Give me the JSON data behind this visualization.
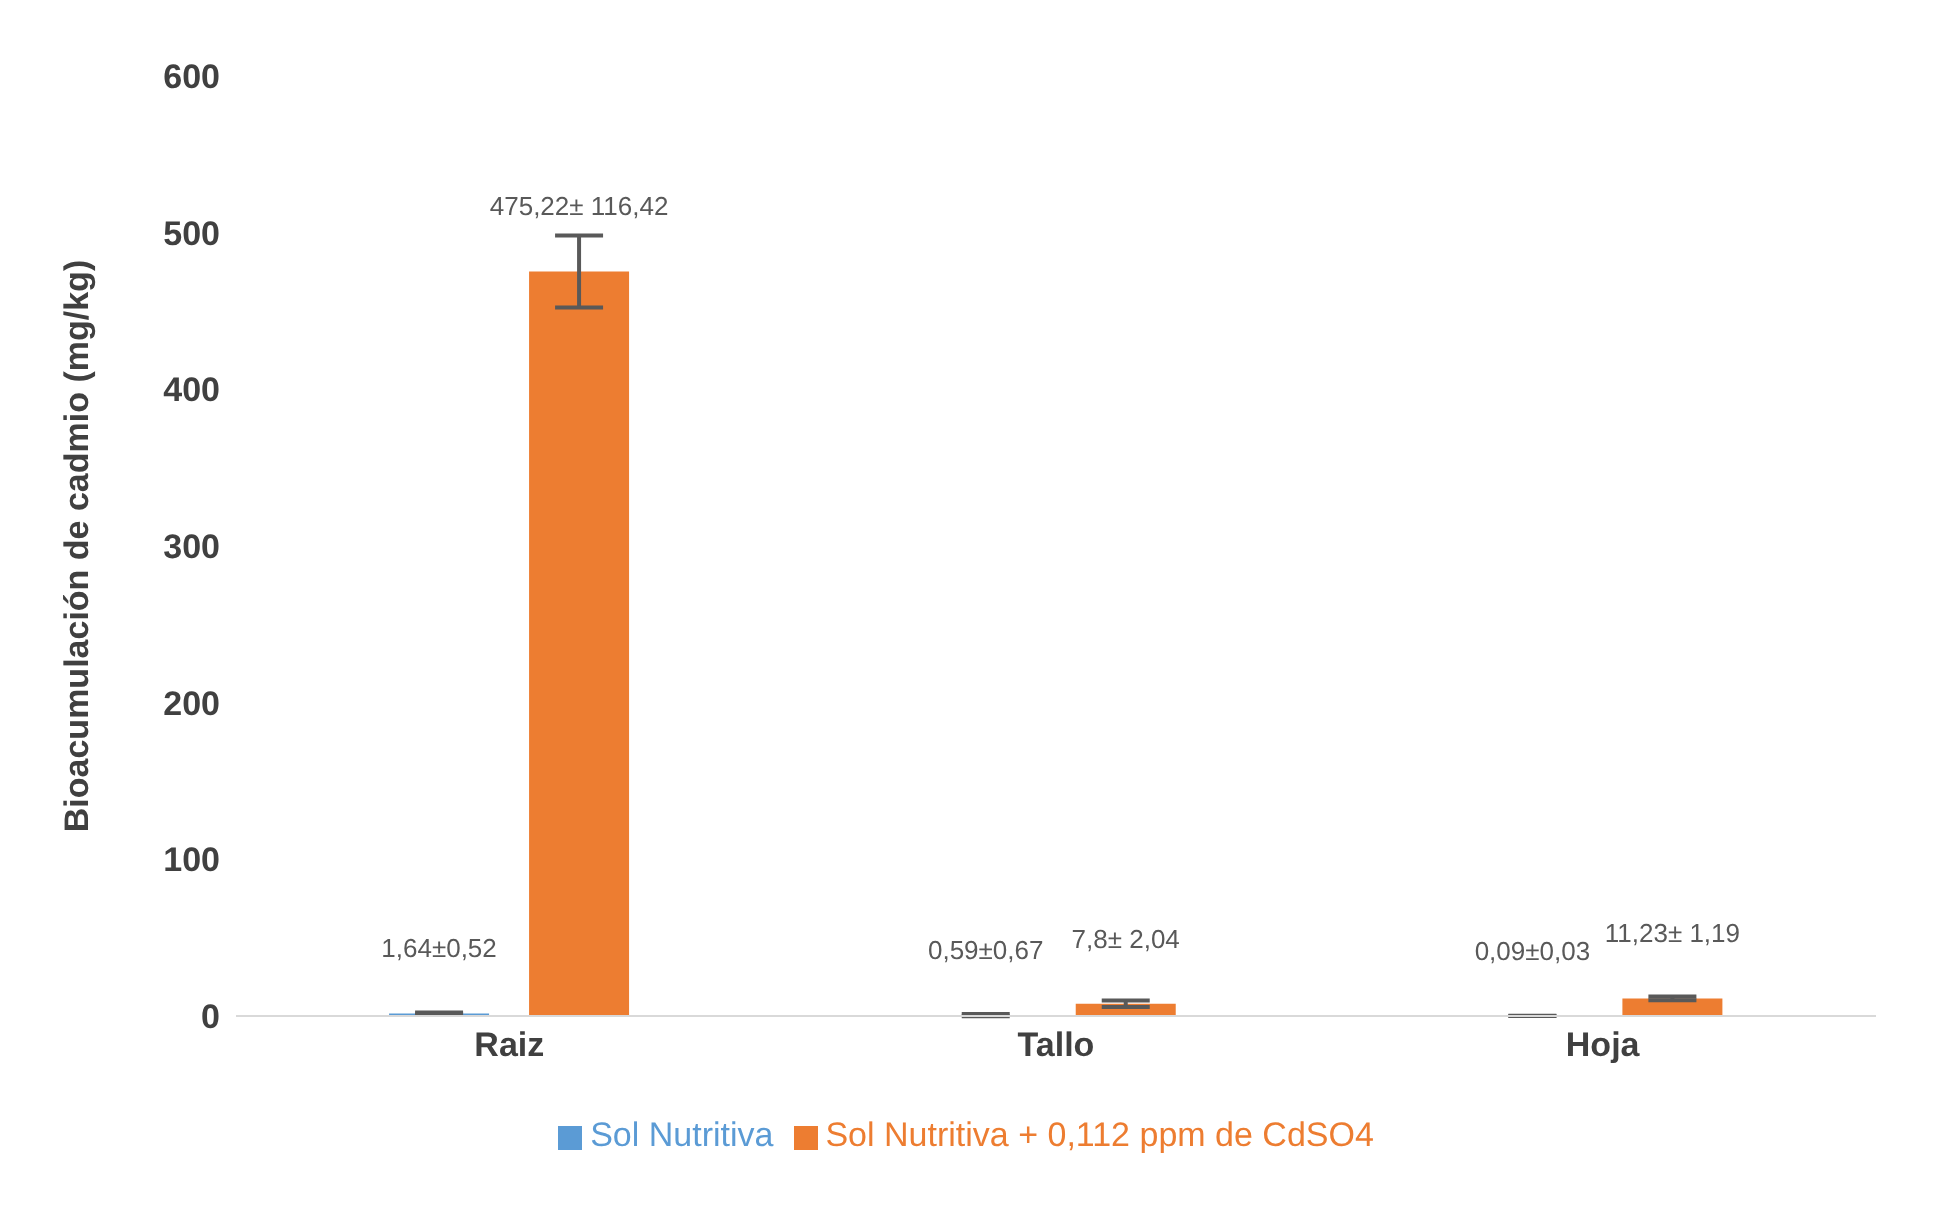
{
  "chart_data": {
    "type": "bar",
    "ylabel": "Bioacumulación  de cadmio  (mg/kg)",
    "categories": [
      "Raiz",
      "Tallo",
      "Hoja"
    ],
    "series": [
      {
        "name": "Sol Nutritiva",
        "color": "#5b9bd5",
        "values": [
          1.64,
          0.59,
          0.09
        ],
        "errors": [
          0.52,
          0.67,
          0.03
        ],
        "value_labels": [
          "1,64±0,52",
          "0,59±0,67",
          "0,09±0,03"
        ]
      },
      {
        "name": "Sol Nutritiva + 0,112 ppm de CdSO4",
        "color": "#ed7d31",
        "values": [
          475.22,
          7.8,
          11.23
        ],
        "errors": [
          23,
          2.04,
          1.19
        ],
        "value_labels": [
          "475,22± 116,42",
          "7,8± 2,04",
          "11,23± 1,19"
        ]
      }
    ],
    "ylim": [
      0,
      600
    ],
    "yticks": [
      0,
      100,
      200,
      300,
      400,
      500,
      600
    ],
    "grid": false,
    "legend": "bottom"
  }
}
